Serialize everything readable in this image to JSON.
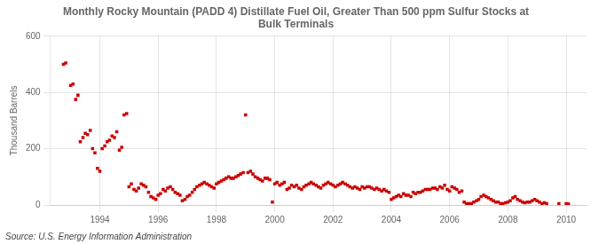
{
  "chart_data": {
    "type": "scatter",
    "title": "Monthly Rocky Mountain (PADD 4) Distillate Fuel Oil, Greater Than 500 ppm Sulfur Stocks at\nBulk Terminals",
    "ylabel": "Thousand Barrels",
    "annotations": [
      "Source: U.S. Energy Information Administration"
    ],
    "color": "#CC0000",
    "marker": "square",
    "grid": true,
    "xlim": [
      1992.3,
      2010.7
    ],
    "xticks": [
      1994,
      1996,
      1998,
      2000,
      2002,
      2004,
      2006,
      2008,
      2010
    ],
    "ylim": [
      0,
      600
    ],
    "yticks": [
      0,
      200,
      400,
      600
    ],
    "x": [
      1992.75,
      1992.83,
      1993.0,
      1993.08,
      1993.17,
      1993.25,
      1993.33,
      1993.42,
      1993.5,
      1993.58,
      1993.67,
      1993.75,
      1993.83,
      1993.92,
      1994.0,
      1994.08,
      1994.17,
      1994.25,
      1994.33,
      1994.42,
      1994.5,
      1994.58,
      1994.67,
      1994.75,
      1994.83,
      1994.92,
      1995.0,
      1995.08,
      1995.17,
      1995.25,
      1995.33,
      1995.42,
      1995.5,
      1995.58,
      1995.67,
      1995.75,
      1995.83,
      1995.92,
      1996.0,
      1996.08,
      1996.17,
      1996.25,
      1996.33,
      1996.42,
      1996.5,
      1996.58,
      1996.67,
      1996.75,
      1996.83,
      1996.92,
      1997.0,
      1997.08,
      1997.17,
      1997.25,
      1997.33,
      1997.42,
      1997.5,
      1997.58,
      1997.67,
      1997.75,
      1997.83,
      1997.92,
      1998.0,
      1998.08,
      1998.17,
      1998.25,
      1998.33,
      1998.42,
      1998.5,
      1998.58,
      1998.67,
      1998.75,
      1998.83,
      1998.92,
      1999.0,
      1999.08,
      1999.17,
      1999.25,
      1999.33,
      1999.42,
      1999.5,
      1999.58,
      1999.67,
      1999.75,
      1999.83,
      1999.92,
      2000.0,
      2000.08,
      2000.17,
      2000.25,
      2000.33,
      2000.42,
      2000.5,
      2000.58,
      2000.67,
      2000.75,
      2000.83,
      2000.92,
      2001.0,
      2001.08,
      2001.17,
      2001.25,
      2001.33,
      2001.42,
      2001.5,
      2001.58,
      2001.67,
      2001.75,
      2001.83,
      2001.92,
      2002.0,
      2002.08,
      2002.17,
      2002.25,
      2002.33,
      2002.42,
      2002.5,
      2002.58,
      2002.67,
      2002.75,
      2002.83,
      2002.92,
      2003.0,
      2003.08,
      2003.17,
      2003.25,
      2003.33,
      2003.42,
      2003.5,
      2003.58,
      2003.67,
      2003.75,
      2003.83,
      2003.92,
      2004.0,
      2004.08,
      2004.17,
      2004.25,
      2004.33,
      2004.42,
      2004.5,
      2004.58,
      2004.67,
      2004.75,
      2004.83,
      2004.92,
      2005.0,
      2005.08,
      2005.17,
      2005.25,
      2005.33,
      2005.42,
      2005.5,
      2005.58,
      2005.67,
      2005.75,
      2005.83,
      2005.92,
      2006.0,
      2006.08,
      2006.17,
      2006.25,
      2006.33,
      2006.42,
      2006.5,
      2006.58,
      2006.67,
      2006.75,
      2006.83,
      2006.92,
      2007.0,
      2007.08,
      2007.17,
      2007.25,
      2007.33,
      2007.42,
      2007.5,
      2007.58,
      2007.67,
      2007.75,
      2007.83,
      2007.92,
      2008.0,
      2008.08,
      2008.17,
      2008.25,
      2008.33,
      2008.42,
      2008.5,
      2008.58,
      2008.67,
      2008.75,
      2008.83,
      2008.92,
      2009.0,
      2009.08,
      2009.17,
      2009.25,
      2009.33,
      2009.75,
      2010.0,
      2010.08
    ],
    "values": [
      500,
      505,
      425,
      430,
      375,
      390,
      225,
      240,
      255,
      250,
      265,
      200,
      185,
      130,
      120,
      200,
      210,
      225,
      230,
      245,
      240,
      260,
      195,
      205,
      320,
      325,
      65,
      75,
      55,
      50,
      60,
      75,
      70,
      65,
      45,
      30,
      25,
      20,
      35,
      40,
      55,
      50,
      60,
      65,
      55,
      45,
      40,
      35,
      15,
      20,
      30,
      35,
      45,
      55,
      65,
      70,
      75,
      80,
      75,
      70,
      65,
      60,
      75,
      80,
      85,
      90,
      95,
      100,
      95,
      95,
      100,
      105,
      110,
      115,
      320,
      115,
      120,
      110,
      100,
      95,
      90,
      85,
      95,
      95,
      90,
      10,
      75,
      80,
      70,
      75,
      80,
      55,
      60,
      70,
      65,
      70,
      60,
      55,
      65,
      70,
      75,
      80,
      75,
      70,
      65,
      60,
      70,
      75,
      80,
      75,
      70,
      65,
      70,
      75,
      80,
      75,
      70,
      65,
      60,
      65,
      60,
      55,
      65,
      60,
      65,
      65,
      60,
      55,
      60,
      55,
      50,
      55,
      50,
      45,
      20,
      25,
      30,
      35,
      30,
      40,
      35,
      35,
      30,
      45,
      40,
      45,
      45,
      50,
      55,
      55,
      55,
      60,
      60,
      55,
      65,
      60,
      70,
      55,
      50,
      65,
      60,
      55,
      45,
      50,
      10,
      5,
      5,
      5,
      10,
      15,
      20,
      30,
      35,
      30,
      25,
      20,
      15,
      10,
      10,
      5,
      5,
      8,
      10,
      15,
      25,
      30,
      20,
      15,
      10,
      8,
      10,
      10,
      15,
      20,
      15,
      10,
      5,
      8,
      5,
      5,
      5,
      3
    ]
  }
}
